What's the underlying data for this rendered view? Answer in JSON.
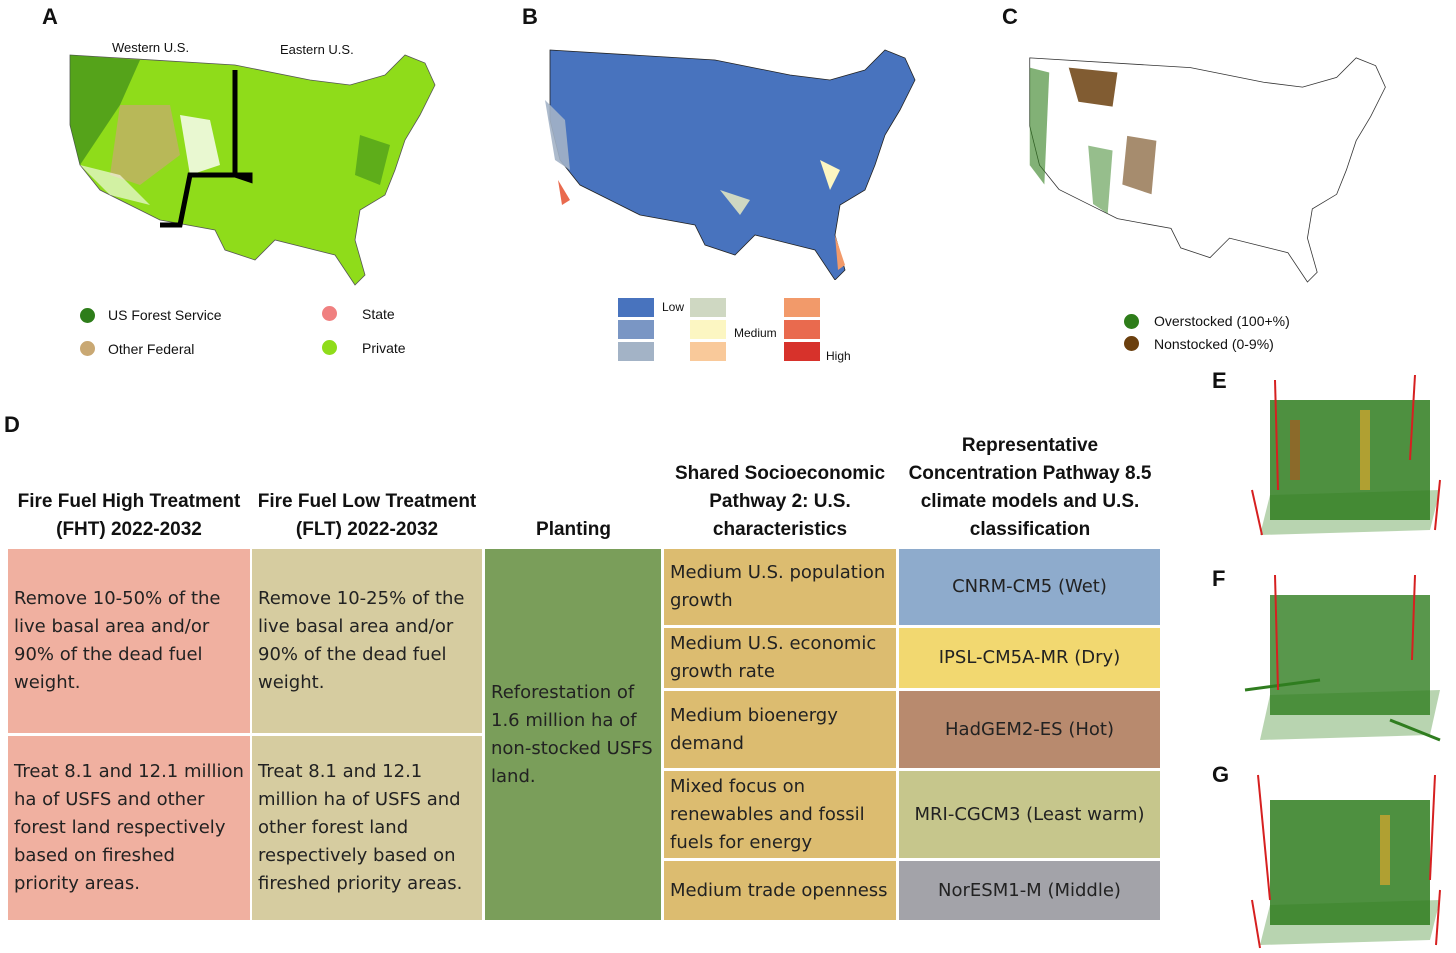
{
  "panels": {
    "A": {
      "letter": "A",
      "region_labels": [
        "Western U.S.",
        "Eastern U.S."
      ],
      "legend": [
        {
          "label": "US Forest Service",
          "color": "#2e7d1a"
        },
        {
          "label": "Other Federal",
          "color": "#c9a873"
        },
        {
          "label": "State",
          "color": "#f08080"
        },
        {
          "label": "Private",
          "color": "#8fdc1a"
        }
      ]
    },
    "B": {
      "letter": "B",
      "legend_labels": {
        "low": "Low",
        "medium": "Medium",
        "high": "High"
      },
      "legend_colors": [
        "#4873be",
        "#7a96c4",
        "#a3b3c6",
        "#cfd8c2",
        "#fcf6c2",
        "#f9c99a",
        "#f29a6a",
        "#e96a4e",
        "#d7322b"
      ]
    },
    "C": {
      "letter": "C",
      "legend": [
        {
          "label": "Overstocked (100+%)",
          "color": "#2e7d1a"
        },
        {
          "label": "Nonstocked (0-9%)",
          "color": "#6b3f0e"
        }
      ]
    },
    "D": {
      "letter": "D",
      "headers": [
        "Fire Fuel High Treatment (FHT)  2022-2032",
        "Fire Fuel  Low Treatment (FLT) 2022-2032",
        "Planting",
        "Shared Socioeconomic Pathway 2: U.S. characteristics",
        "Representative Concentration Pathway 8.5 climate models and U.S. classification"
      ],
      "fht": [
        "Remove 10-50% of the live basal area and/or 90% of the dead fuel weight.",
        "Treat 8.1 and 12.1 million ha of USFS and other forest land respectively based on fireshed priority areas."
      ],
      "flt": [
        "Remove 10-25% of the live basal area and/or 90% of the dead fuel weight.",
        "Treat 8.1 and 12.1 million ha of USFS and other forest land respectively based on fireshed priority areas."
      ],
      "planting": "Reforestation of 1.6 million ha of non-stocked USFS land.",
      "ssp": [
        "Medium U.S. population growth",
        "Medium U.S. economic growth rate",
        "Medium bioenergy demand",
        "Mixed focus on renewables and fossil fuels for energy",
        "Medium trade openness"
      ],
      "rcp": [
        {
          "label": "CNRM-CM5 (Wet)",
          "color": "#8eabcc"
        },
        {
          "label": "IPSL-CM5A-MR (Dry)",
          "color": "#f2d870"
        },
        {
          "label": "HadGEM2-ES (Hot)",
          "color": "#b88a6e"
        },
        {
          "label": "MRI-CGCM3 (Least warm)",
          "color": "#c6c68c"
        },
        {
          "label": "NorESM1-M (Middle)",
          "color": "#a3a3a9"
        }
      ],
      "colors": {
        "fht": "#f0b0a0",
        "flt": "#d6cca0",
        "planting": "#7a9e5a",
        "ssp": "#dcbc70"
      }
    },
    "E": {
      "letter": "E"
    },
    "F": {
      "letter": "F"
    },
    "G": {
      "letter": "G"
    }
  }
}
